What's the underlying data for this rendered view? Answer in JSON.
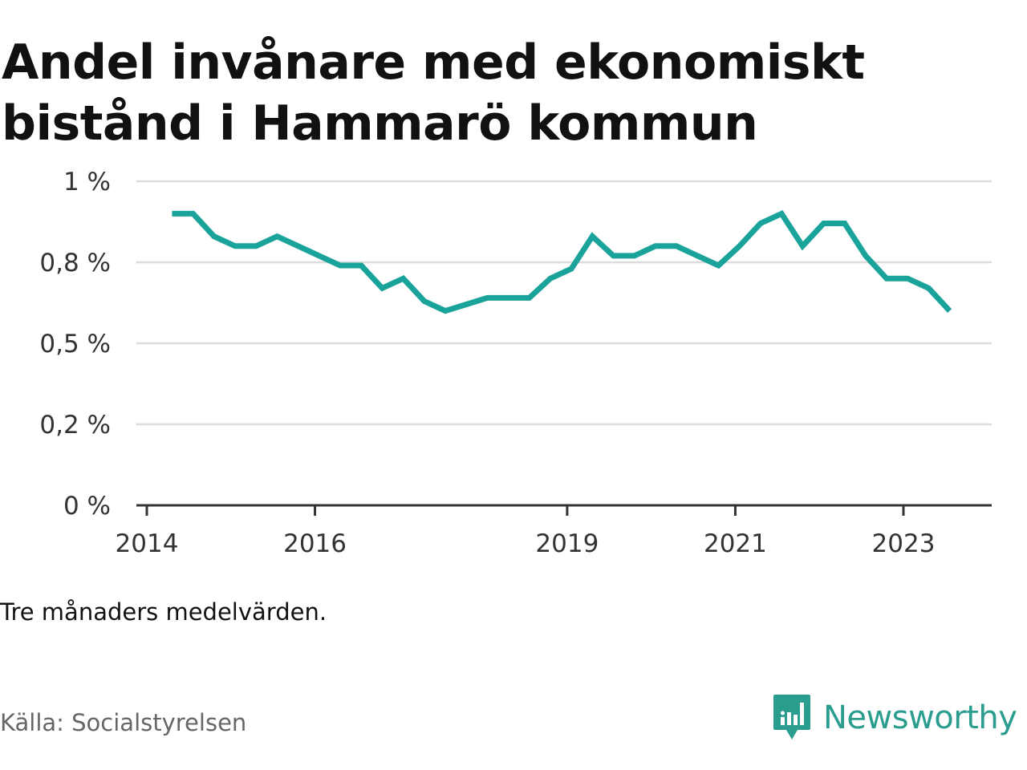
{
  "title_line1": "Andel invånare med ekonomiskt",
  "title_line2": "bistånd i Hammarö kommun",
  "note": "Tre månaders medelvärden.",
  "source": "Källa: Socialstyrelsen",
  "brand": {
    "name": "Newsworthy",
    "icon": "newsworthy-logo-icon",
    "color": "#2a9d8f"
  },
  "chart_data": {
    "type": "line",
    "title": "Andel invånare med ekonomiskt bistånd i Hammarö kommun",
    "xlabel": "",
    "ylabel": "",
    "line_color": "#1aa39a",
    "grid": true,
    "xlim": [
      2014.0,
      2024.0
    ],
    "ylim": [
      0,
      1
    ],
    "x_ticks": [
      {
        "value": 2014,
        "label": "2014"
      },
      {
        "value": 2016,
        "label": "2016"
      },
      {
        "value": 2019,
        "label": "2019"
      },
      {
        "value": 2021,
        "label": "2021"
      },
      {
        "value": 2023,
        "label": "2023"
      }
    ],
    "y_ticks": [
      {
        "value": 0,
        "label": "0 %"
      },
      {
        "value": 0.25,
        "label": "0,2 %"
      },
      {
        "value": 0.5,
        "label": "0,5 %"
      },
      {
        "value": 0.75,
        "label": "0,8 %"
      },
      {
        "value": 1,
        "label": "1 %"
      }
    ],
    "series": [
      {
        "x": [
          2014.3,
          2014.55,
          2014.8,
          2015.05,
          2015.3,
          2015.55,
          2015.8,
          2016.05,
          2016.3,
          2016.55,
          2016.8,
          2017.05,
          2017.3,
          2017.55,
          2017.8,
          2018.05,
          2018.3,
          2018.55,
          2018.8,
          2019.05,
          2019.3,
          2019.55,
          2019.8,
          2020.05,
          2020.3,
          2020.55,
          2020.8,
          2021.05,
          2021.3,
          2021.55,
          2021.8,
          2022.05,
          2022.3,
          2022.55,
          2022.8,
          2023.05,
          2023.3,
          2023.55
        ],
        "y": [
          0.9,
          0.9,
          0.83,
          0.8,
          0.8,
          0.83,
          0.8,
          0.77,
          0.74,
          0.74,
          0.67,
          0.7,
          0.63,
          0.6,
          0.62,
          0.64,
          0.64,
          0.64,
          0.7,
          0.73,
          0.83,
          0.77,
          0.77,
          0.8,
          0.8,
          0.77,
          0.74,
          0.8,
          0.87,
          0.9,
          0.8,
          0.87,
          0.87,
          0.77,
          0.7,
          0.7,
          0.67,
          0.6
        ]
      }
    ]
  }
}
